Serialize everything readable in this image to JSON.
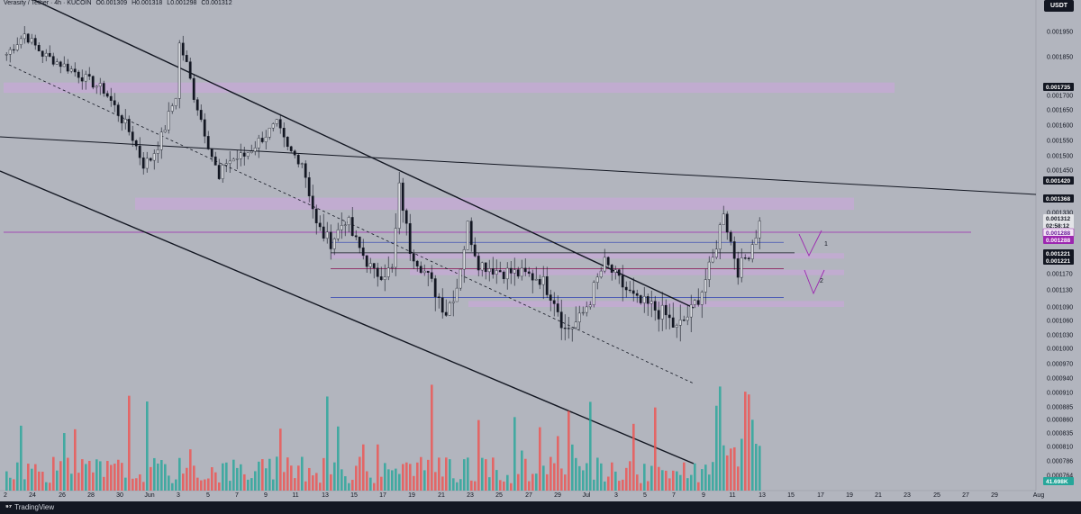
{
  "header": {
    "symbol": "Verasity / Tether · 4h · KUCOIN",
    "open": "O0.001309",
    "high": "H0.001318",
    "low": "L0.001298",
    "close": "C0.001312"
  },
  "currency_badge": "USDT",
  "brand": "TradingView",
  "colors": {
    "background": "#b2b5be",
    "up": "#26a69a",
    "down": "#ef5350",
    "zone": "#c6a9d6",
    "label_dark": "#131722",
    "label_purple": "#9c27b0"
  },
  "chart_data": {
    "type": "candlestick",
    "symbol": "Verasity / Tether",
    "interval": "4h",
    "exchange": "KUCOIN",
    "y_axis": {
      "ticks": [
        "0.001950",
        "0.001850",
        "0.001700",
        "0.001650",
        "0.001600",
        "0.001550",
        "0.001500",
        "0.001450",
        "0.001330",
        "0.001170",
        "0.001130",
        "0.001090",
        "0.001060",
        "0.001030",
        "0.001000",
        "0.000970",
        "0.000940",
        "0.000910",
        "0.000885",
        "0.000860",
        "0.000835",
        "0.000810",
        "0.000786",
        "0.000764"
      ],
      "price_labels": [
        {
          "text": "0.001735",
          "style": "dark"
        },
        {
          "text": "0.001420",
          "style": "dark"
        },
        {
          "text": "0.001368",
          "style": "dark"
        },
        {
          "text": "0.001312",
          "style": "light"
        },
        {
          "text": "02:58:12",
          "style": "light"
        },
        {
          "text": "0.001288",
          "style": "purple-outline"
        },
        {
          "text": "0.001288",
          "style": "purple"
        },
        {
          "text": "0.001221",
          "style": "dark"
        },
        {
          "text": "0.001221",
          "style": "dark"
        },
        {
          "text": "41.698K",
          "style": "teal"
        }
      ]
    },
    "x_axis": {
      "ticks": [
        "2",
        "24",
        "26",
        "28",
        "30",
        "Jun",
        "3",
        "5",
        "7",
        "9",
        "11",
        "13",
        "15",
        "17",
        "19",
        "21",
        "23",
        "25",
        "27",
        "29",
        "Jul",
        "3",
        "5",
        "7",
        "9",
        "11",
        "13",
        "15",
        "17",
        "19",
        "21",
        "23",
        "25",
        "27",
        "29",
        "Aug"
      ]
    },
    "anchor_points": [
      [
        0,
        0.00186
      ],
      [
        5,
        0.00194
      ],
      [
        10,
        0.00186
      ],
      [
        18,
        0.0018
      ],
      [
        27,
        0.00172
      ],
      [
        35,
        0.00156
      ],
      [
        38,
        0.00147
      ],
      [
        40,
        0.00149
      ],
      [
        43,
        0.00156
      ],
      [
        47,
        0.0017
      ],
      [
        48,
        0.0019
      ],
      [
        50,
        0.00182
      ],
      [
        52,
        0.0017
      ],
      [
        56,
        0.00154
      ],
      [
        59,
        0.00142
      ],
      [
        61,
        0.00148
      ],
      [
        66,
        0.0015
      ],
      [
        71,
        0.00156
      ],
      [
        75,
        0.0016
      ],
      [
        78,
        0.00152
      ],
      [
        82,
        0.00148
      ],
      [
        86,
        0.0013
      ],
      [
        90,
        0.00126
      ],
      [
        94,
        0.00132
      ],
      [
        98,
        0.00124
      ],
      [
        102,
        0.00117
      ],
      [
        107,
        0.00118
      ],
      [
        109,
        0.0014
      ],
      [
        112,
        0.00124
      ],
      [
        117,
        0.00116
      ],
      [
        122,
        0.00108
      ],
      [
        125,
        0.00114
      ],
      [
        128,
        0.0013
      ],
      [
        131,
        0.0012
      ],
      [
        136,
        0.00118
      ],
      [
        142,
        0.00117
      ],
      [
        148,
        0.00116
      ],
      [
        152,
        0.00111
      ],
      [
        155,
        0.00104
      ],
      [
        159,
        0.00106
      ],
      [
        162,
        0.00111
      ],
      [
        166,
        0.0012
      ],
      [
        170,
        0.00115
      ],
      [
        175,
        0.0011
      ],
      [
        179,
        0.00109
      ],
      [
        183,
        0.00107
      ],
      [
        186,
        0.00104
      ],
      [
        190,
        0.00108
      ],
      [
        193,
        0.00113
      ],
      [
        196,
        0.00121
      ],
      [
        199,
        0.00134
      ],
      [
        201,
        0.00126
      ],
      [
        203,
        0.00118
      ],
      [
        206,
        0.00123
      ],
      [
        209,
        0.001312
      ]
    ],
    "candle_count": 210,
    "zones": [
      {
        "from": 0.00171,
        "to": 0.00175
      },
      {
        "from": 0.001338,
        "to": 0.001374
      },
      {
        "from": 0.001214,
        "to": 0.001228
      },
      {
        "from": 0.001167,
        "to": 0.001181
      },
      {
        "from": 0.00109,
        "to": 0.001104
      }
    ],
    "levels": [
      0.001288,
      0.001259,
      0.001229,
      0.001184,
      0.001112
    ],
    "annotations": [
      "1",
      "2"
    ],
    "volume_scale": "41.698K"
  }
}
